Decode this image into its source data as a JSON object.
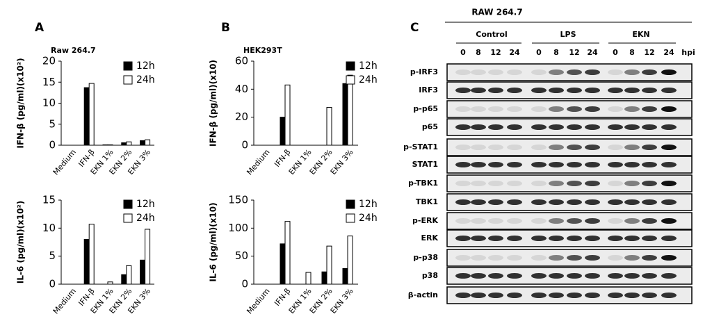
{
  "panel_labels": [
    "A",
    "B",
    "C"
  ],
  "chart_data": [
    {
      "type": "bar",
      "title": "Raw 264.7",
      "ylabel": "IFN-β (pg/ml)(x10²)",
      "categories": [
        "Medium",
        "IFN-β",
        "EKN 1%",
        "EKN 2%",
        "EKN 3%"
      ],
      "series": [
        {
          "name": "12h",
          "color": "#000000",
          "values": [
            0,
            13.7,
            0.1,
            0.6,
            1.1
          ]
        },
        {
          "name": "24h",
          "color": "#ffffff",
          "values": [
            0,
            14.7,
            0.1,
            0.8,
            1.3
          ]
        }
      ],
      "ylim": [
        0,
        20
      ],
      "yticks": [
        0,
        5,
        10,
        15,
        20
      ],
      "legend": "upper right"
    },
    {
      "type": "bar",
      "ylabel": "IL-6 (pg/ml)(x10²)",
      "categories": [
        "Medium",
        "IFN-β",
        "EKN 1%",
        "EKN 2%",
        "EKN 3%"
      ],
      "series": [
        {
          "name": "12h",
          "color": "#000000",
          "values": [
            0,
            8.0,
            0,
            1.7,
            4.3
          ]
        },
        {
          "name": "24h",
          "color": "#ffffff",
          "values": [
            0,
            10.7,
            0.4,
            3.3,
            9.8
          ]
        }
      ],
      "ylim": [
        0,
        15
      ],
      "yticks": [
        0,
        5,
        10,
        15
      ],
      "legend": "upper right"
    },
    {
      "type": "bar",
      "title": "HEK293T",
      "ylabel": "IFN-β (pg/ml)(x10)",
      "categories": [
        "Medium",
        "IFN-β",
        "EKN 1%",
        "EKN 2%",
        "EKN 3%"
      ],
      "series": [
        {
          "name": "12h",
          "color": "#000000",
          "values": [
            0,
            20,
            0,
            0,
            44
          ]
        },
        {
          "name": "24h",
          "color": "#ffffff",
          "values": [
            0,
            43,
            0,
            27,
            50
          ]
        }
      ],
      "ylim": [
        0,
        60
      ],
      "yticks": [
        0,
        20,
        40,
        60
      ],
      "legend": "upper right"
    },
    {
      "type": "bar",
      "ylabel": "IL-6 (pg/ml)(x10)",
      "categories": [
        "Medium",
        "IFN-β",
        "EKN 1%",
        "EKN 2%",
        "EKN 3%"
      ],
      "series": [
        {
          "name": "12h",
          "color": "#000000",
          "values": [
            0,
            72,
            0,
            22,
            28
          ]
        },
        {
          "name": "24h",
          "color": "#ffffff",
          "values": [
            0,
            112,
            21,
            68,
            86
          ]
        }
      ],
      "ylim": [
        0,
        150
      ],
      "yticks": [
        0,
        50,
        100,
        150
      ],
      "legend": "upper right"
    }
  ],
  "blot": {
    "title": "RAW 264.7",
    "groups": [
      "Control",
      "LPS",
      "EKN"
    ],
    "timepoints": [
      "0",
      "8",
      "12",
      "24"
    ],
    "unit": "hpi",
    "proteins": [
      "p-IRF3",
      "IRF3",
      "p-p65",
      "p65",
      "p-STAT1",
      "STAT1",
      "p-TBK1",
      "TBK1",
      "p-ERK",
      "ERK",
      "p-p38",
      "p38",
      "β-actin"
    ]
  }
}
